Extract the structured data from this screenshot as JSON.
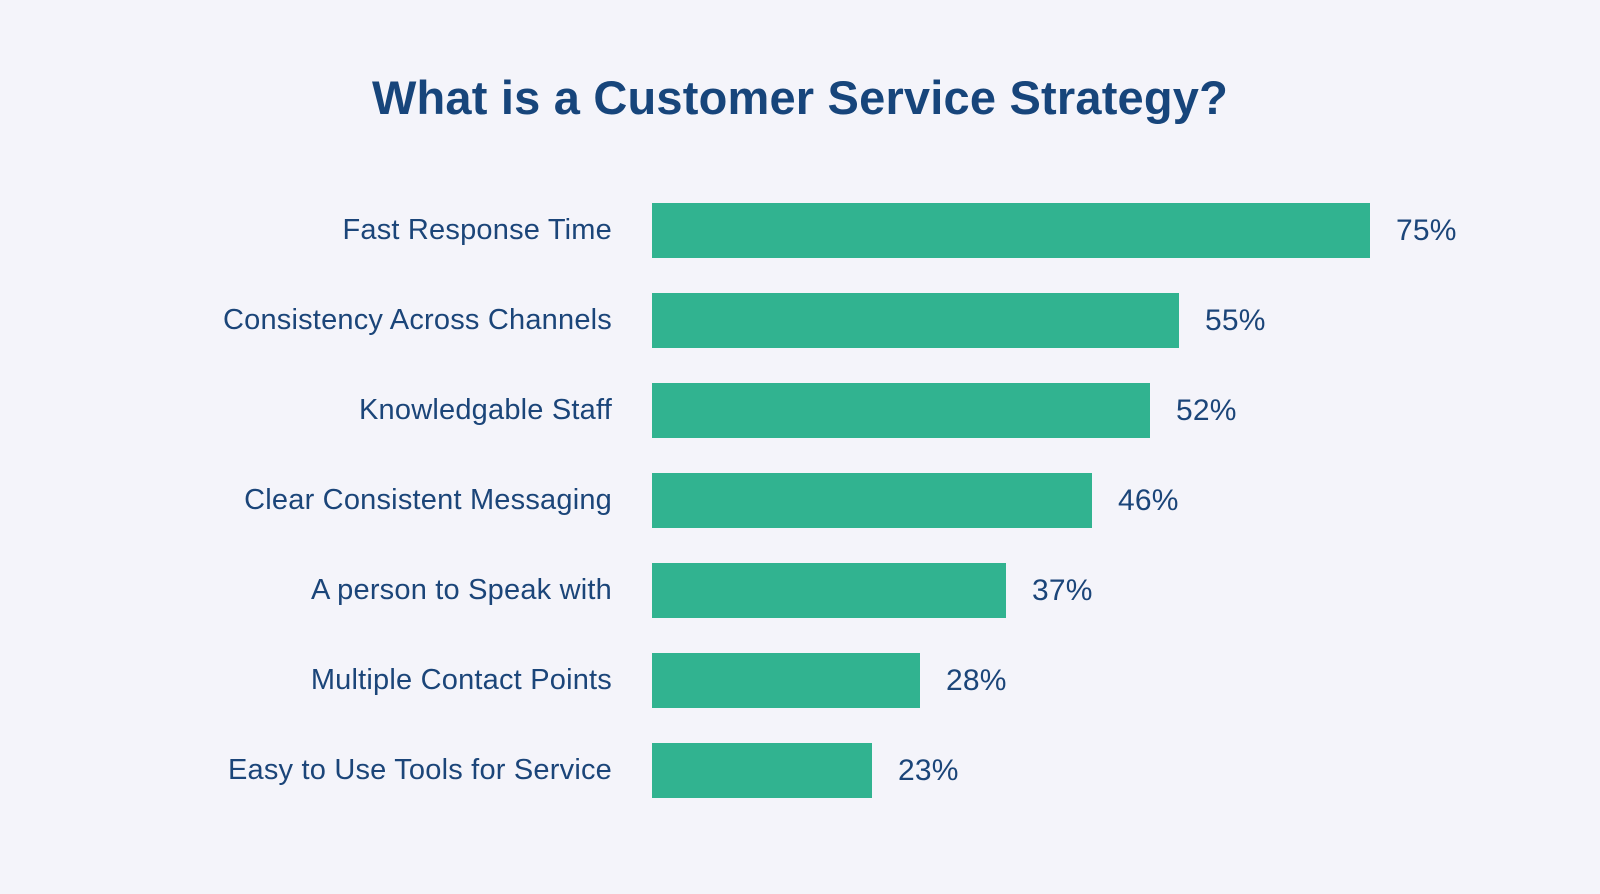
{
  "colors": {
    "background": "#f4f4fa",
    "bar": "#31b390",
    "text": "#1b4579",
    "title": "#17457b"
  },
  "chart_data": {
    "type": "bar",
    "orientation": "horizontal",
    "title": "What is a Customer Service Strategy?",
    "categories": [
      "Fast Response Time",
      "Consistency Across Channels",
      "Knowledgable Staff",
      "Clear Consistent Messaging",
      "A person to Speak with",
      "Multiple Contact Points",
      "Easy to Use Tools for Service"
    ],
    "values": [
      75,
      55,
      52,
      46,
      37,
      28,
      23
    ],
    "value_suffix": "%",
    "value_label_position": "right-of-bar",
    "xlabel": "",
    "ylabel": "",
    "xlim": [
      0,
      80
    ],
    "grid": false,
    "legend": false,
    "axes_visible": false,
    "bar_color": "#31b390",
    "label_color": "#1b4579"
  }
}
